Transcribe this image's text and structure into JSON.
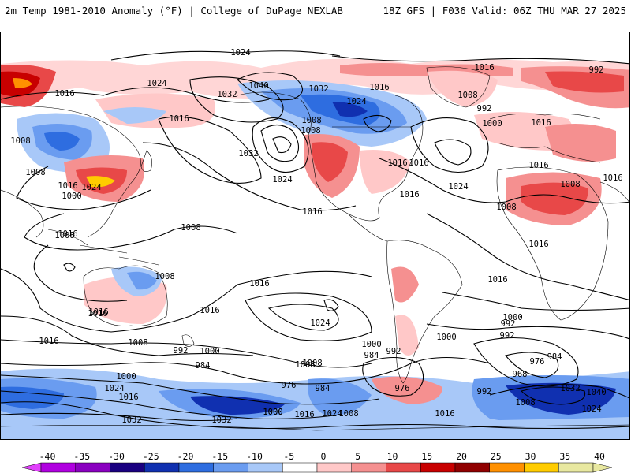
{
  "header": {
    "title_left": "2m Temp 1981-2010 Anomaly (°F) | College of DuPage NEXLAB",
    "title_right": "18Z GFS | F036 Valid: 06Z THU MAR 27 2025"
  },
  "colorbar": {
    "ticks": [
      "-40",
      "-35",
      "-30",
      "-25",
      "-20",
      "-15",
      "-10",
      "-5",
      "0",
      "5",
      "10",
      "15",
      "20",
      "25",
      "30",
      "35",
      "40"
    ],
    "colors": [
      "#e040fb",
      "#b000e0",
      "#8a00c0",
      "#1a0080",
      "#1030b0",
      "#2e6de0",
      "#6a9cf0",
      "#a8c8f8",
      "#ffffff",
      "#ffc8c8",
      "#f59090",
      "#e84848",
      "#c80000",
      "#900000",
      "#ff9000",
      "#ffcc00",
      "#e8e8a0"
    ]
  },
  "isobars": {
    "labels": [
      {
        "text": "1024"
      },
      {
        "text": "1016"
      },
      {
        "text": "992"
      },
      {
        "text": "1024"
      },
      {
        "text": "1040"
      },
      {
        "text": "1032"
      },
      {
        "text": "1008"
      },
      {
        "text": "1032"
      },
      {
        "text": "1024"
      },
      {
        "text": "1016"
      },
      {
        "text": "1016"
      },
      {
        "text": "1008"
      },
      {
        "text": "992"
      },
      {
        "text": "1000"
      },
      {
        "text": "1016"
      },
      {
        "text": "1016"
      },
      {
        "text": "1024"
      },
      {
        "text": "1016"
      },
      {
        "text": "1016"
      },
      {
        "text": "1032"
      },
      {
        "text": "1024"
      },
      {
        "text": "1016"
      },
      {
        "text": "1008"
      },
      {
        "text": "1016"
      },
      {
        "text": "1008"
      },
      {
        "text": "1008"
      },
      {
        "text": "1016"
      },
      {
        "text": "1024"
      },
      {
        "text": "1016"
      },
      {
        "text": "1008"
      },
      {
        "text": "1008"
      },
      {
        "text": "1000"
      },
      {
        "text": "1016"
      },
      {
        "text": "1008"
      },
      {
        "text": "1016"
      },
      {
        "text": "1008"
      },
      {
        "text": "1016"
      },
      {
        "text": "1016"
      },
      {
        "text": "1024"
      },
      {
        "text": "1016"
      },
      {
        "text": "1016"
      },
      {
        "text": "1008"
      },
      {
        "text": "1000"
      },
      {
        "text": "992"
      },
      {
        "text": "1016"
      },
      {
        "text": "1008"
      },
      {
        "text": "992"
      },
      {
        "text": "1000"
      },
      {
        "text": "1000"
      },
      {
        "text": "992"
      },
      {
        "text": "984"
      },
      {
        "text": "1008"
      },
      {
        "text": "984"
      },
      {
        "text": "1008"
      },
      {
        "text": "1000"
      },
      {
        "text": "992"
      },
      {
        "text": "1024"
      },
      {
        "text": "1016"
      },
      {
        "text": "976"
      },
      {
        "text": "984"
      },
      {
        "text": "976"
      },
      {
        "text": "968"
      },
      {
        "text": "976"
      },
      {
        "text": "984"
      },
      {
        "text": "992"
      },
      {
        "text": "1032"
      },
      {
        "text": "1040"
      },
      {
        "text": "1008"
      },
      {
        "text": "1024"
      },
      {
        "text": "1000"
      },
      {
        "text": "1016"
      },
      {
        "text": "1024"
      },
      {
        "text": "1008"
      },
      {
        "text": "1000"
      },
      {
        "text": "1016"
      },
      {
        "text": "1032"
      },
      {
        "text": "1032"
      },
      {
        "text": "1000"
      },
      {
        "text": "1016"
      },
      {
        "text": "1016"
      }
    ]
  }
}
